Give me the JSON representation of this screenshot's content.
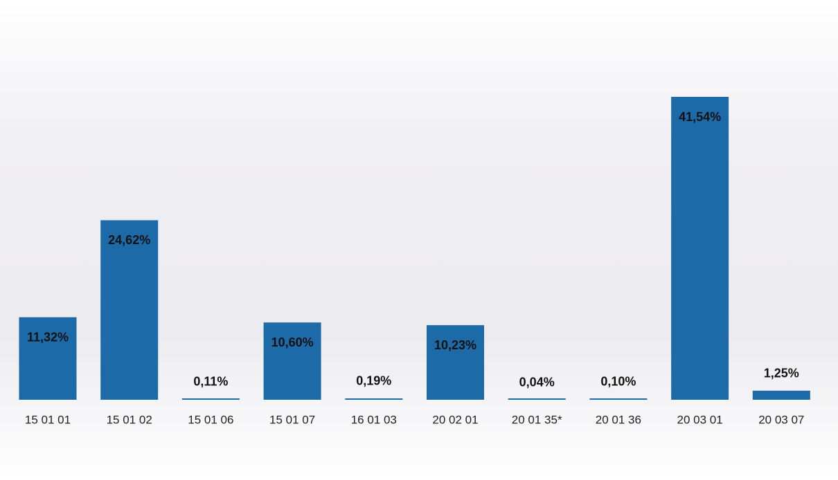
{
  "chart_data": {
    "type": "bar",
    "categories": [
      "15 01 01",
      "15 01 02",
      "15 01 06",
      "15 01 07",
      "16 01 03",
      "20 02 01",
      "20 01 35*",
      "20 01 36",
      "20 03 01",
      "20 03 07"
    ],
    "values": [
      11.32,
      24.62,
      0.11,
      10.6,
      0.19,
      10.23,
      0.04,
      0.1,
      41.54,
      1.25
    ],
    "value_labels": [
      "11,32%",
      "24,62%",
      "0,11%",
      "10,60%",
      "0,19%",
      "10,23%",
      "0,04%",
      "0,10%",
      "41,54%",
      "1,25%"
    ],
    "color": "#1d6aa8"
  }
}
